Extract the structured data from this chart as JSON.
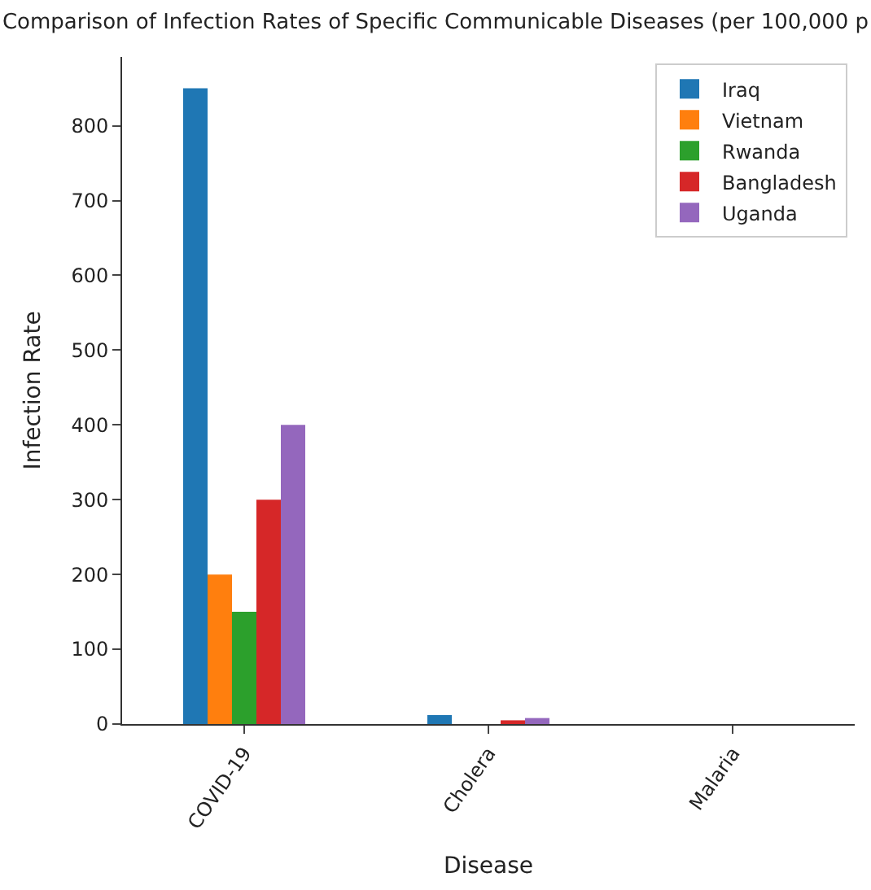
{
  "chart_data": {
    "type": "bar",
    "title": "Comparison of Infection Rates of Specific Communicable Diseases (per 100,000 p",
    "xlabel": "Disease",
    "ylabel": "Infection Rate",
    "categories": [
      "COVID-19",
      "Cholera",
      "Malaria"
    ],
    "series": [
      {
        "name": "Iraq",
        "color": "#1f77b4",
        "values": [
          850,
          12,
          0
        ]
      },
      {
        "name": "Vietnam",
        "color": "#ff7f0e",
        "values": [
          200,
          0,
          0
        ]
      },
      {
        "name": "Rwanda",
        "color": "#2ca02c",
        "values": [
          150,
          0,
          0
        ]
      },
      {
        "name": "Bangladesh",
        "color": "#d62728",
        "values": [
          300,
          5,
          0
        ]
      },
      {
        "name": "Uganda",
        "color": "#9467bd",
        "values": [
          400,
          8,
          0
        ]
      }
    ],
    "ylim": [
      0,
      892
    ],
    "yticks": [
      0,
      100,
      200,
      300,
      400,
      500,
      600,
      700,
      800
    ],
    "legend": "top right"
  }
}
